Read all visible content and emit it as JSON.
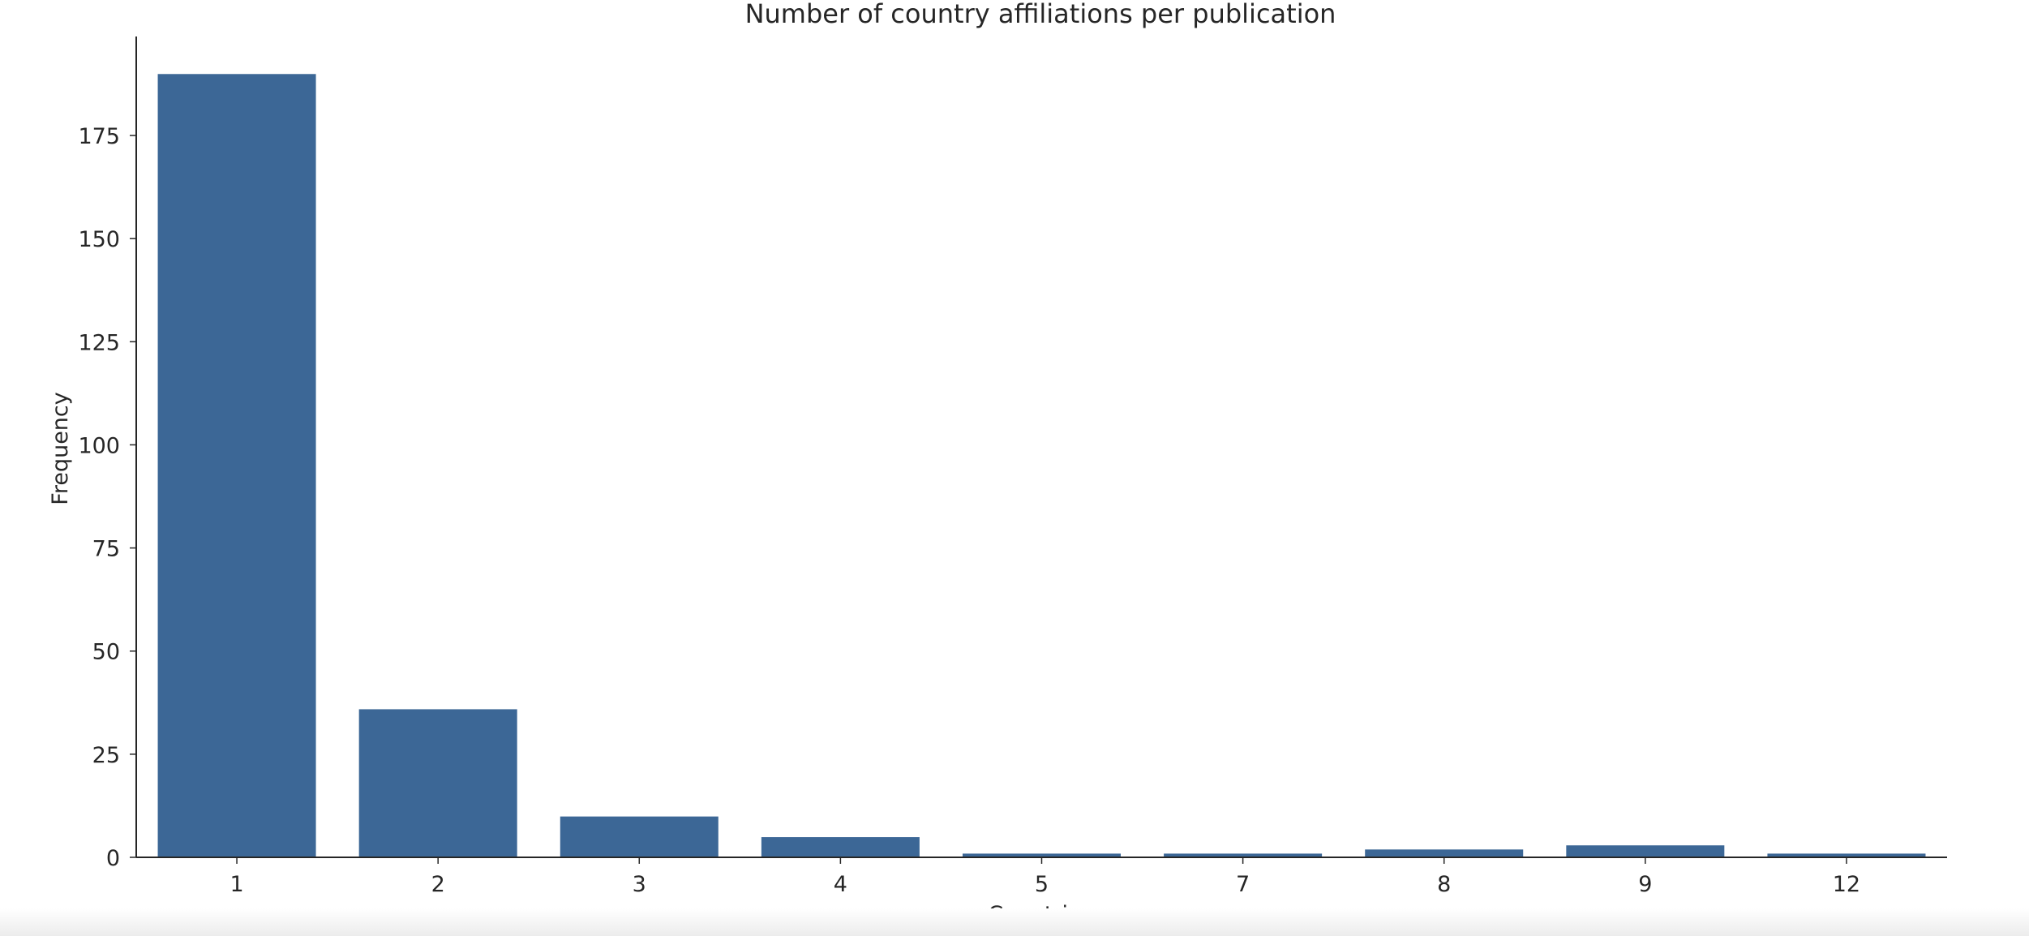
{
  "chart_data": {
    "type": "bar",
    "title": "Number of country affiliations per publication",
    "xlabel": "Countries",
    "ylabel": "Frequency",
    "categories": [
      "1",
      "2",
      "3",
      "4",
      "5",
      "7",
      "8",
      "9",
      "12"
    ],
    "values": [
      190,
      36,
      10,
      5,
      1,
      1,
      2,
      3,
      1
    ],
    "ylim": [
      0,
      199
    ],
    "yticks": [
      0,
      25,
      50,
      75,
      100,
      125,
      150,
      175
    ],
    "grid": false,
    "legend": "none",
    "colors": {
      "bar": "#3c6796",
      "axis": "#262626",
      "text": "#262626",
      "background": "#ffffff"
    }
  }
}
